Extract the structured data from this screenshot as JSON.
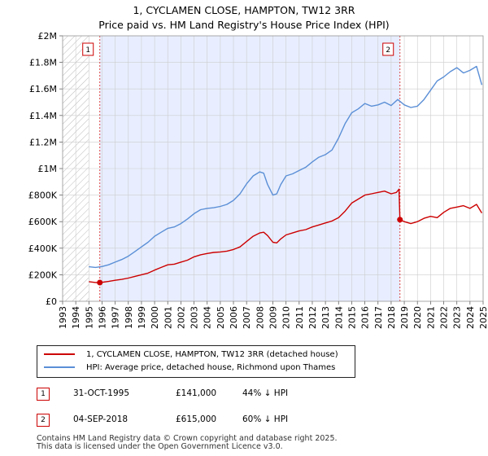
{
  "header": {
    "title": "1, CYCLAMEN CLOSE, HAMPTON, TW12 3RR",
    "subtitle": "Price paid vs. HM Land Registry's House Price Index (HPI)"
  },
  "chart_data": {
    "type": "line",
    "xlim": [
      1993.0,
      2025.0
    ],
    "ylim": [
      0,
      2000000
    ],
    "y_ticks": [
      0,
      200000,
      400000,
      600000,
      800000,
      1000000,
      1200000,
      1400000,
      1600000,
      1800000,
      2000000
    ],
    "y_tick_labels": [
      "£0",
      "£200K",
      "£400K",
      "£600K",
      "£800K",
      "£1M",
      "£1.2M",
      "£1.4M",
      "£1.6M",
      "£1.8M",
      "£2M"
    ],
    "x_tick_labels": [
      "1993",
      "1994",
      "1995",
      "1996",
      "1997",
      "1998",
      "1999",
      "2000",
      "2001",
      "2002",
      "2003",
      "2004",
      "2005",
      "2006",
      "2007",
      "2008",
      "2009",
      "2010",
      "2011",
      "2012",
      "2013",
      "2014",
      "2015",
      "2016",
      "2017",
      "2018",
      "2019",
      "2020",
      "2021",
      "2022",
      "2023",
      "2024",
      "2025"
    ],
    "hatched_before": 1995.0,
    "colors": {
      "property": "#cc0000",
      "hpi": "#5b8fd6",
      "shade": "#e8eeff",
      "grid": "#cccccc",
      "marker_line": "#dd4444"
    },
    "series": [
      {
        "name": "1, CYCLAMEN CLOSE, HAMPTON, TW12 3RR (detached house)",
        "color": "#cc0000",
        "x": [
          1995.0,
          1995.5,
          1995.83,
          1996.0,
          1996.5,
          1997.0,
          1997.5,
          1998.0,
          1998.5,
          1999.0,
          1999.5,
          2000.0,
          2000.5,
          2001.0,
          2001.5,
          2002.0,
          2002.5,
          2003.0,
          2003.5,
          2004.0,
          2004.5,
          2005.0,
          2005.5,
          2006.0,
          2006.5,
          2007.0,
          2007.5,
          2008.0,
          2008.3,
          2008.6,
          2009.0,
          2009.3,
          2009.6,
          2010.0,
          2010.5,
          2011.0,
          2011.5,
          2012.0,
          2012.5,
          2013.0,
          2013.5,
          2014.0,
          2014.5,
          2015.0,
          2015.5,
          2016.0,
          2016.5,
          2017.0,
          2017.5,
          2018.0,
          2018.4,
          2018.6,
          2018.67,
          2018.75,
          2019.0,
          2019.5,
          2020.0,
          2020.5,
          2021.0,
          2021.5,
          2022.0,
          2022.5,
          2023.0,
          2023.5,
          2024.0,
          2024.5,
          2024.9
        ],
        "values": [
          148000,
          142000,
          141000,
          143000,
          150000,
          158000,
          165000,
          175000,
          188000,
          200000,
          212000,
          235000,
          255000,
          275000,
          280000,
          295000,
          310000,
          335000,
          350000,
          360000,
          368000,
          372000,
          378000,
          390000,
          410000,
          450000,
          490000,
          515000,
          520000,
          495000,
          445000,
          440000,
          470000,
          500000,
          515000,
          530000,
          540000,
          560000,
          575000,
          590000,
          605000,
          630000,
          680000,
          740000,
          770000,
          800000,
          810000,
          820000,
          830000,
          810000,
          820000,
          845000,
          615000,
          612000,
          600000,
          585000,
          600000,
          625000,
          640000,
          630000,
          670000,
          700000,
          710000,
          720000,
          700000,
          730000,
          665000
        ]
      },
      {
        "name": "HPI: Average price, detached house, Richmond upon Thames",
        "color": "#5b8fd6",
        "x": [
          1995.0,
          1995.5,
          1996.0,
          1996.5,
          1997.0,
          1997.5,
          1998.0,
          1998.5,
          1999.0,
          1999.5,
          2000.0,
          2000.5,
          2001.0,
          2001.5,
          2002.0,
          2002.5,
          2003.0,
          2003.5,
          2004.0,
          2004.5,
          2005.0,
          2005.5,
          2006.0,
          2006.5,
          2007.0,
          2007.5,
          2008.0,
          2008.3,
          2008.6,
          2009.0,
          2009.3,
          2009.6,
          2010.0,
          2010.5,
          2011.0,
          2011.5,
          2012.0,
          2012.5,
          2013.0,
          2013.5,
          2014.0,
          2014.5,
          2015.0,
          2015.5,
          2016.0,
          2016.5,
          2017.0,
          2017.5,
          2018.0,
          2018.5,
          2019.0,
          2019.5,
          2020.0,
          2020.5,
          2021.0,
          2021.5,
          2022.0,
          2022.5,
          2023.0,
          2023.5,
          2024.0,
          2024.5,
          2024.9
        ],
        "values": [
          260000,
          255000,
          262000,
          275000,
          295000,
          315000,
          340000,
          375000,
          410000,
          445000,
          490000,
          520000,
          550000,
          560000,
          585000,
          620000,
          660000,
          690000,
          700000,
          705000,
          715000,
          730000,
          760000,
          810000,
          885000,
          945000,
          975000,
          965000,
          880000,
          800000,
          810000,
          880000,
          945000,
          960000,
          985000,
          1010000,
          1050000,
          1085000,
          1105000,
          1140000,
          1230000,
          1340000,
          1420000,
          1450000,
          1490000,
          1470000,
          1480000,
          1500000,
          1475000,
          1520000,
          1480000,
          1460000,
          1470000,
          1520000,
          1590000,
          1660000,
          1690000,
          1730000,
          1760000,
          1720000,
          1740000,
          1770000,
          1630000
        ]
      }
    ],
    "markers": [
      {
        "label": "1",
        "x": 1995.83,
        "y": 141000
      },
      {
        "label": "2",
        "x": 2018.67,
        "y": 615000
      }
    ],
    "legend_position": "below"
  },
  "legend": {
    "property_label": "1, CYCLAMEN CLOSE, HAMPTON, TW12 3RR (detached house)",
    "hpi_label": "HPI: Average price, detached house, Richmond upon Thames"
  },
  "sales": [
    {
      "num": "1",
      "date": "31-OCT-1995",
      "price": "£141,000",
      "hpi": "44% ↓ HPI"
    },
    {
      "num": "2",
      "date": "04-SEP-2018",
      "price": "£615,000",
      "hpi": "60% ↓ HPI"
    }
  ],
  "footer": {
    "line1": "Contains HM Land Registry data © Crown copyright and database right 2025.",
    "line2": "This data is licensed under the Open Government Licence v3.0."
  }
}
